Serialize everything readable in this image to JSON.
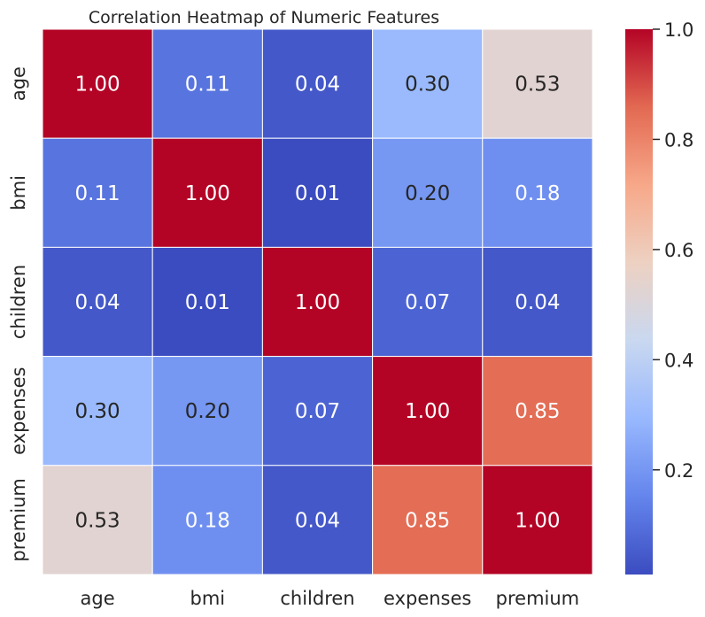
{
  "chart_data": {
    "type": "heatmap",
    "title": "Correlation Heatmap of Numeric Features",
    "xlabel": "",
    "ylabel": "",
    "x_categories": [
      "age",
      "bmi",
      "children",
      "expenses",
      "premium"
    ],
    "y_categories": [
      "age",
      "bmi",
      "children",
      "expenses",
      "premium"
    ],
    "values": [
      [
        1.0,
        0.11,
        0.04,
        0.3,
        0.53
      ],
      [
        0.11,
        1.0,
        0.01,
        0.2,
        0.18
      ],
      [
        0.04,
        0.01,
        1.0,
        0.07,
        0.04
      ],
      [
        0.3,
        0.2,
        0.07,
        1.0,
        0.85
      ],
      [
        0.53,
        0.18,
        0.04,
        0.85,
        1.0
      ]
    ],
    "cell_labels": [
      [
        "1.00",
        "0.11",
        "0.04",
        "0.30",
        "0.53"
      ],
      [
        "0.11",
        "1.00",
        "0.01",
        "0.20",
        "0.18"
      ],
      [
        "0.04",
        "0.01",
        "1.00",
        "0.07",
        "0.04"
      ],
      [
        "0.30",
        "0.20",
        "0.07",
        "1.00",
        "0.85"
      ],
      [
        "0.53",
        "0.18",
        "0.04",
        "0.85",
        "1.00"
      ]
    ],
    "colormap": "coolwarm",
    "colormap_stops": [
      "#3b4cc0",
      "#6485ec",
      "#98b8fe",
      "#c9d8f0",
      "#edd1c2",
      "#f7a889",
      "#e26952",
      "#b40426"
    ],
    "vmin": 0.01,
    "vmax": 1.0,
    "colorbar": {
      "ticks": [
        0.2,
        0.4,
        0.6,
        0.8,
        1.0
      ],
      "tick_labels": [
        "0.2",
        "0.4",
        "0.6",
        "0.8",
        "1.0"
      ],
      "placement": "right"
    },
    "grid_line_color": "#ffffff",
    "annotation_dark_text_color": "#262626",
    "annotation_light_text_color": "#ffffff",
    "text_color": "#262626"
  }
}
